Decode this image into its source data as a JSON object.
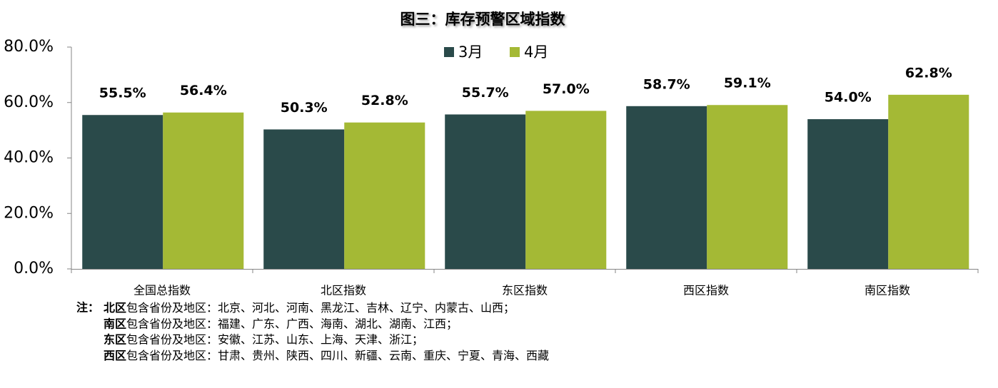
{
  "chart_data": {
    "type": "bar",
    "title": "图三：库存预警区域指数",
    "categories": [
      "全国总指数",
      "北区指数",
      "东区指数",
      "西区指数",
      "南区指数"
    ],
    "series": [
      {
        "name": "3月",
        "color": "#2a4a4a",
        "values": [
          55.5,
          50.3,
          55.7,
          58.7,
          54.0
        ],
        "value_labels": [
          "55.5%",
          "50.3%",
          "55.7%",
          "58.7%",
          "54.0%"
        ]
      },
      {
        "name": "4月",
        "color": "#a4b935",
        "values": [
          56.4,
          52.8,
          57.0,
          59.1,
          62.8
        ],
        "value_labels": [
          "56.4%",
          "52.8%",
          "57.0%",
          "59.1%",
          "62.8%"
        ]
      }
    ],
    "ylim": [
      0,
      80
    ],
    "yticks": [
      {
        "value": 0,
        "label": "0.0%"
      },
      {
        "value": 20,
        "label": "20.0%"
      },
      {
        "value": 40,
        "label": "40.0%"
      },
      {
        "value": 60,
        "label": "60.0%"
      },
      {
        "value": 80,
        "label": "80.0%"
      }
    ],
    "grid": false,
    "legend": "top",
    "notes": {
      "prefix": "注：",
      "lines": [
        {
          "region": "北区",
          "text": "包含省份及地区：北京、河北、河南、黑龙江、吉林、辽宁、内蒙古、山西；"
        },
        {
          "region": "南区",
          "text": "包含省份及地区：福建、广东、广西、海南、湖北、湖南、江西；"
        },
        {
          "region": "东区",
          "text": "包含省份及地区：安徽、江苏、山东、上海、天津、浙江；"
        },
        {
          "region": "西区",
          "text": "包含省份及地区：甘肃、贵州、陕西、四川、新疆、云南、重庆、宁夏、青海、西藏"
        }
      ]
    }
  }
}
